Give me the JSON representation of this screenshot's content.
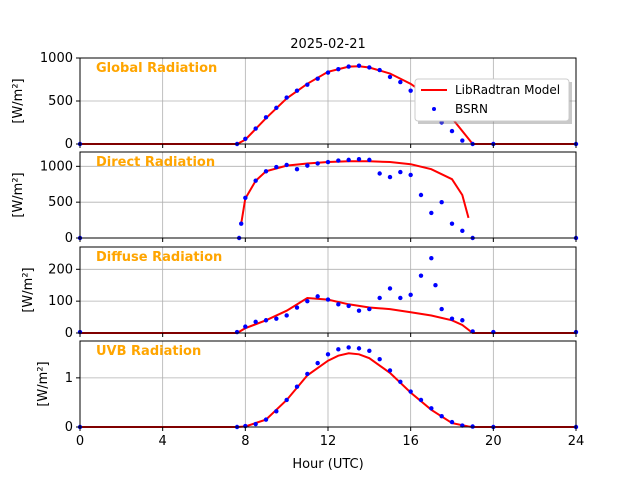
{
  "figure_title": "2025-02-21",
  "xlabel": "Hour (UTC)",
  "colors": {
    "model": "#ff0000",
    "bsrn": "#0000ff",
    "panel_title": "#ffa500",
    "grid": "#b0b0b0"
  },
  "legend": {
    "placement": "upper-right of first panel",
    "entries": [
      "LibRadtran Model",
      "BSRN"
    ]
  },
  "chart_data": [
    {
      "type": "line",
      "title": "Global Radiation",
      "ylabel": "[W/m²]",
      "xlim": [
        0,
        24
      ],
      "ylim": [
        0,
        1000
      ],
      "xticks": [
        0,
        4,
        8,
        12,
        16,
        20,
        24
      ],
      "yticks": [
        0,
        500,
        1000
      ],
      "grid": true,
      "series": [
        {
          "name": "LibRadtran Model",
          "style": "line",
          "x": [
            0,
            7.6,
            8,
            9,
            10,
            11,
            12,
            13,
            13.5,
            14,
            15,
            16,
            17,
            18,
            18.8,
            19,
            24
          ],
          "y": [
            0,
            0,
            50,
            300,
            530,
            700,
            840,
            900,
            905,
            890,
            820,
            700,
            530,
            300,
            60,
            0,
            0
          ]
        },
        {
          "name": "BSRN",
          "style": "points",
          "x": [
            0,
            7.6,
            8,
            8.5,
            9,
            9.5,
            10,
            10.5,
            11,
            11.5,
            12,
            12.5,
            13,
            13.5,
            14,
            14.5,
            15,
            15.5,
            16,
            16.5,
            17,
            17.5,
            18,
            18.5,
            19,
            20,
            24
          ],
          "y": [
            0,
            0,
            60,
            180,
            310,
            420,
            540,
            620,
            690,
            760,
            830,
            870,
            900,
            910,
            890,
            860,
            780,
            720,
            620,
            480,
            330,
            250,
            150,
            40,
            0,
            0,
            0
          ]
        }
      ]
    },
    {
      "type": "line",
      "title": "Direct Radiation",
      "ylabel": "[W/m²]",
      "xlim": [
        0,
        24
      ],
      "ylim": [
        0,
        1200
      ],
      "xticks": [
        0,
        4,
        8,
        12,
        16,
        20,
        24
      ],
      "yticks": [
        0,
        500,
        1000
      ],
      "grid": true,
      "series": [
        {
          "name": "LibRadtran Model",
          "style": "line",
          "x": [
            7.8,
            8,
            8.5,
            9,
            10,
            11,
            12,
            13,
            14,
            15,
            16,
            17,
            18,
            18.5,
            18.8
          ],
          "y": [
            200,
            550,
            800,
            930,
            1010,
            1040,
            1060,
            1070,
            1070,
            1060,
            1030,
            960,
            820,
            600,
            280
          ]
        },
        {
          "name": "BSRN",
          "style": "points",
          "x": [
            0,
            7.7,
            7.8,
            8,
            8.5,
            9,
            9.5,
            10,
            10.5,
            11,
            11.5,
            12,
            12.5,
            13,
            13.5,
            14,
            14.5,
            15,
            15.5,
            16,
            16.5,
            17,
            17.5,
            18,
            18.5,
            19,
            24
          ],
          "y": [
            0,
            0,
            200,
            560,
            800,
            930,
            990,
            1020,
            960,
            1010,
            1040,
            1060,
            1080,
            1090,
            1100,
            1090,
            900,
            850,
            920,
            880,
            600,
            350,
            500,
            200,
            100,
            0,
            0
          ]
        }
      ]
    },
    {
      "type": "line",
      "title": "Diffuse Radiation",
      "ylabel": "[W/m²]",
      "xlim": [
        0,
        24
      ],
      "ylim": [
        0,
        270
      ],
      "xticks": [
        0,
        4,
        8,
        12,
        16,
        20,
        24
      ],
      "yticks": [
        0,
        100,
        200
      ],
      "grid": true,
      "series": [
        {
          "name": "LibRadtran Model",
          "style": "line",
          "x": [
            0,
            7.6,
            8,
            9,
            10,
            11,
            12,
            13,
            14,
            15,
            16,
            17,
            18,
            18.5,
            19,
            24
          ],
          "y": [
            0,
            0,
            15,
            40,
            70,
            110,
            105,
            90,
            80,
            75,
            65,
            55,
            40,
            25,
            0,
            0
          ]
        },
        {
          "name": "BSRN",
          "style": "points",
          "x": [
            0,
            7.6,
            8,
            8.5,
            9,
            9.5,
            10,
            10.5,
            11,
            11.5,
            12,
            12.5,
            13,
            13.5,
            14,
            14.5,
            15,
            15.5,
            16,
            16.5,
            17,
            17.2,
            17.5,
            18,
            18.5,
            19,
            20,
            24
          ],
          "y": [
            3,
            3,
            20,
            35,
            40,
            45,
            55,
            80,
            100,
            115,
            105,
            90,
            85,
            70,
            75,
            110,
            140,
            110,
            120,
            180,
            235,
            150,
            75,
            45,
            40,
            5,
            3,
            3
          ]
        }
      ]
    },
    {
      "type": "line",
      "title": "UVB Radiation",
      "ylabel": "[W/m²]",
      "xlim": [
        0,
        24
      ],
      "ylim": [
        0,
        1.75
      ],
      "xticks": [
        0,
        4,
        8,
        12,
        16,
        20,
        24
      ],
      "yticks": [
        0,
        1
      ],
      "grid": true,
      "series": [
        {
          "name": "LibRadtran Model",
          "style": "line",
          "x": [
            0,
            7.6,
            8,
            9,
            10,
            11,
            12,
            12.5,
            13,
            13.5,
            14,
            15,
            16,
            17,
            18,
            18.8,
            19,
            24
          ],
          "y": [
            0,
            0,
            0.01,
            0.15,
            0.55,
            1.05,
            1.35,
            1.45,
            1.5,
            1.48,
            1.4,
            1.1,
            0.7,
            0.35,
            0.08,
            0.01,
            0,
            0
          ]
        },
        {
          "name": "BSRN",
          "style": "points",
          "x": [
            0,
            7.6,
            8,
            8.5,
            9,
            9.5,
            10,
            10.5,
            11,
            11.5,
            12,
            12.5,
            13,
            13.5,
            14,
            14.5,
            15,
            15.5,
            16,
            16.5,
            17,
            17.5,
            18,
            18.5,
            19,
            20,
            24
          ],
          "y": [
            0,
            0,
            0.02,
            0.06,
            0.15,
            0.32,
            0.55,
            0.82,
            1.08,
            1.3,
            1.48,
            1.58,
            1.62,
            1.6,
            1.55,
            1.38,
            1.15,
            0.92,
            0.72,
            0.55,
            0.38,
            0.22,
            0.1,
            0.03,
            0.01,
            0,
            0
          ]
        }
      ]
    }
  ]
}
